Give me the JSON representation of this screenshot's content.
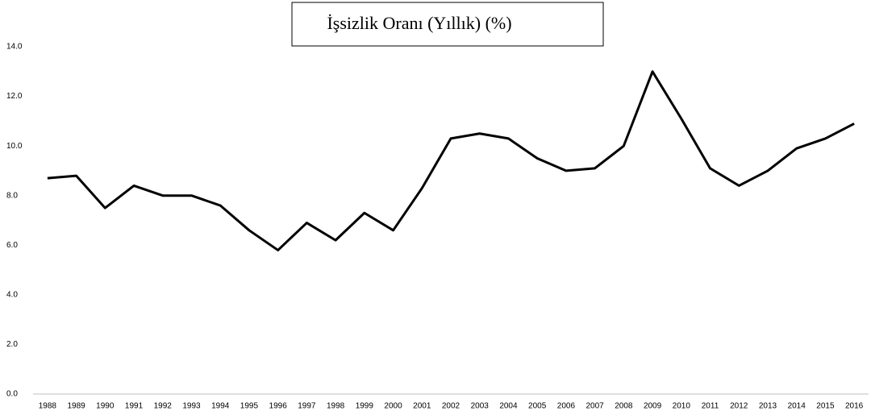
{
  "chart_data": {
    "type": "line",
    "title": "İşsizlik Oranı (Yıllık) (%)",
    "categories": [
      "1988",
      "1989",
      "1990",
      "1991",
      "1992",
      "1993",
      "1994",
      "1995",
      "1996",
      "1997",
      "1998",
      "1999",
      "2000",
      "2001",
      "2002",
      "2003",
      "2004",
      "2005",
      "2006",
      "2007",
      "2008",
      "2009",
      "2010",
      "2011",
      "2012",
      "2013",
      "2014",
      "2015",
      "2016"
    ],
    "series": [
      {
        "name": "İşsizlik Oranı",
        "color": "#000000",
        "values": [
          8.7,
          8.8,
          7.5,
          8.4,
          8.0,
          8.0,
          7.6,
          6.6,
          5.8,
          6.9,
          6.2,
          7.3,
          6.6,
          8.3,
          10.3,
          10.5,
          10.3,
          9.5,
          9.0,
          9.1,
          10.0,
          13.0,
          11.1,
          9.1,
          8.4,
          9.0,
          9.9,
          10.3,
          10.9
        ]
      }
    ],
    "ylim": [
      0,
      14
    ],
    "yticks": [
      {
        "value": 0,
        "label": "0.0"
      },
      {
        "value": 2,
        "label": "2.0"
      },
      {
        "value": 4,
        "label": "4.0"
      },
      {
        "value": 6,
        "label": "6.0"
      },
      {
        "value": 8,
        "label": "8.0"
      },
      {
        "value": 10,
        "label": "10.0"
      },
      {
        "value": 12,
        "label": "12.0"
      },
      {
        "value": 14,
        "label": "14.0"
      }
    ],
    "grid": false
  }
}
